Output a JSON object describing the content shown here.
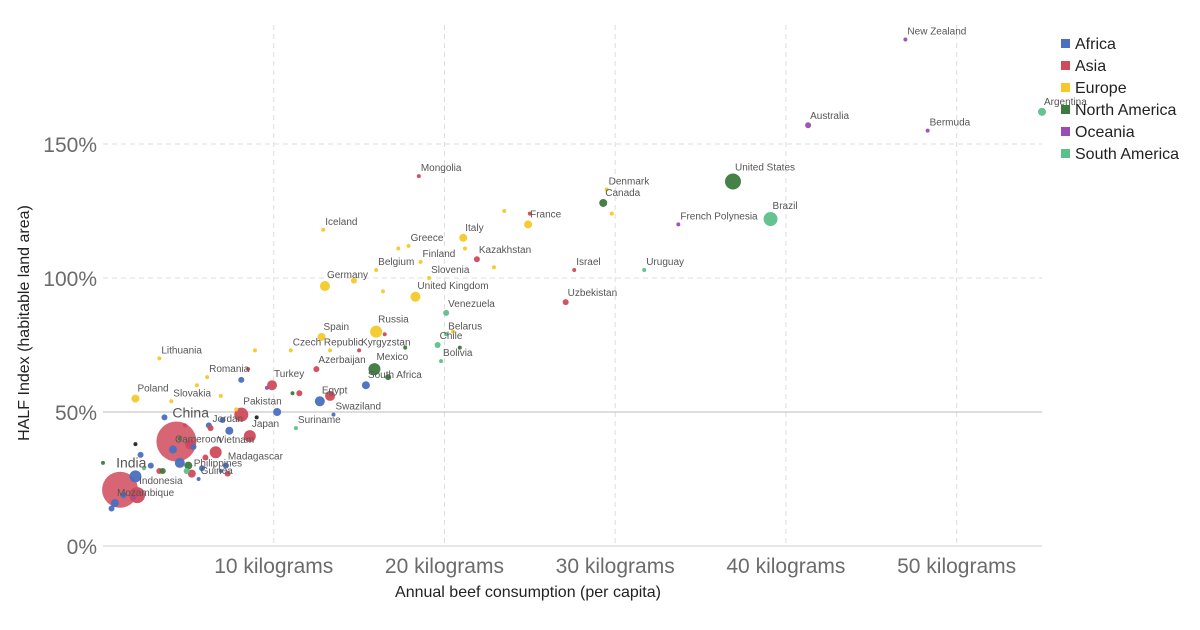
{
  "chart_data": {
    "type": "scatter",
    "title": "",
    "xlabel": "Annual beef consumption (per capita)",
    "ylabel": "HALF Index (habitable land area)",
    "xlim": [
      0,
      55
    ],
    "ylim": [
      0,
      190
    ],
    "x_ticks": [
      {
        "value": 10,
        "label": "10 kilograms"
      },
      {
        "value": 20,
        "label": "20 kilograms"
      },
      {
        "value": 30,
        "label": "30 kilograms"
      },
      {
        "value": 40,
        "label": "40 kilograms"
      },
      {
        "value": 50,
        "label": "50 kilograms"
      }
    ],
    "y_ticks": [
      {
        "value": 0,
        "label": "0%"
      },
      {
        "value": 50,
        "label": "50%"
      },
      {
        "value": 100,
        "label": "100%"
      },
      {
        "value": 150,
        "label": "150%"
      }
    ],
    "reference_line": 50,
    "grid": true,
    "legend_position": "top-right",
    "colors": {
      "Africa": "#4a6fc0",
      "Asia": "#d04a5a",
      "Europe": "#f5c92a",
      "North America": "#3d7a3d",
      "Oceania": "#9a4cb5",
      "South America": "#5cc08a"
    },
    "series": [
      {
        "name": "Africa",
        "points": [
          {
            "label": "Egypt",
            "x": 12.7,
            "y": 54,
            "size": 5
          },
          {
            "label": "South Africa",
            "x": 15.4,
            "y": 60,
            "size": 4
          },
          {
            "label": "Swaziland",
            "x": 13.5,
            "y": 49,
            "size": 2
          },
          {
            "label": "Cameroon",
            "x": 4.1,
            "y": 36,
            "size": 4
          },
          {
            "label": "Madagascar",
            "x": 7.2,
            "y": 30,
            "size": 3
          },
          {
            "label": "Guinea",
            "x": 5.6,
            "y": 25,
            "size": 2
          },
          {
            "label": "Mozambique",
            "x": 0.7,
            "y": 16,
            "size": 4
          },
          {
            "label": "",
            "x": 1.9,
            "y": 26,
            "size": 6
          },
          {
            "label": "",
            "x": 0.5,
            "y": 14,
            "size": 3
          },
          {
            "label": "",
            "x": 1.2,
            "y": 19,
            "size": 3
          },
          {
            "label": "",
            "x": 2.2,
            "y": 34,
            "size": 3
          },
          {
            "label": "",
            "x": 4.5,
            "y": 31,
            "size": 5
          },
          {
            "label": "",
            "x": 5.3,
            "y": 37,
            "size": 3
          },
          {
            "label": "",
            "x": 6.2,
            "y": 45,
            "size": 3
          },
          {
            "label": "",
            "x": 7.4,
            "y": 43,
            "size": 4
          },
          {
            "label": "",
            "x": 8.1,
            "y": 62,
            "size": 3
          },
          {
            "label": "",
            "x": 10.2,
            "y": 50,
            "size": 4
          },
          {
            "label": "",
            "x": 3.6,
            "y": 48,
            "size": 3
          },
          {
            "label": "",
            "x": 2.8,
            "y": 30,
            "size": 3
          },
          {
            "label": "",
            "x": 5.8,
            "y": 29,
            "size": 3
          },
          {
            "label": "",
            "x": 7.0,
            "y": 47,
            "size": 3
          },
          {
            "label": "",
            "x": 6.9,
            "y": 28,
            "size": 2
          }
        ]
      },
      {
        "name": "Asia",
        "points": [
          {
            "label": "Mongolia",
            "x": 18.5,
            "y": 138,
            "size": 2
          },
          {
            "label": "Kazakhstan",
            "x": 21.9,
            "y": 107,
            "size": 3
          },
          {
            "label": "Israel",
            "x": 27.6,
            "y": 103,
            "size": 2
          },
          {
            "label": "Uzbekistan",
            "x": 27.1,
            "y": 91,
            "size": 3
          },
          {
            "label": "Kyrgyzstan",
            "x": 15.0,
            "y": 73,
            "size": 2
          },
          {
            "label": "Azerbaijan",
            "x": 12.5,
            "y": 66,
            "size": 3
          },
          {
            "label": "Turkey",
            "x": 9.9,
            "y": 60,
            "size": 5
          },
          {
            "label": "Pakistan",
            "x": 8.1,
            "y": 49,
            "size": 7
          },
          {
            "label": "Jordan",
            "x": 6.3,
            "y": 44,
            "size": 3
          },
          {
            "label": "Japan",
            "x": 8.6,
            "y": 41,
            "size": 6
          },
          {
            "label": "Vietnam",
            "x": 6.6,
            "y": 35,
            "size": 6
          },
          {
            "label": "Philippines",
            "x": 5.2,
            "y": 27,
            "size": 4
          },
          {
            "label": "China",
            "x": 4.3,
            "y": 39,
            "size": 20
          },
          {
            "label": "India",
            "x": 1.0,
            "y": 21,
            "size": 18
          },
          {
            "label": "Indonesia",
            "x": 2.0,
            "y": 19,
            "size": 8
          },
          {
            "label": "",
            "x": 11.5,
            "y": 57,
            "size": 3
          },
          {
            "label": "",
            "x": 13.3,
            "y": 56,
            "size": 5
          },
          {
            "label": "",
            "x": 16.5,
            "y": 79,
            "size": 2
          },
          {
            "label": "",
            "x": 25.0,
            "y": 124,
            "size": 2
          },
          {
            "label": "",
            "x": 8.5,
            "y": 66,
            "size": 2
          },
          {
            "label": "",
            "x": 3.3,
            "y": 28,
            "size": 3
          },
          {
            "label": "",
            "x": 5.1,
            "y": 38,
            "size": 5
          },
          {
            "label": "",
            "x": 6.0,
            "y": 33,
            "size": 3
          },
          {
            "label": "",
            "x": 4.8,
            "y": 45,
            "size": 2
          },
          {
            "label": "",
            "x": 7.3,
            "y": 27,
            "size": 3
          }
        ]
      },
      {
        "name": "Europe",
        "points": [
          {
            "label": "Denmark",
            "x": 29.5,
            "y": 133,
            "size": 2
          },
          {
            "label": "France",
            "x": 24.9,
            "y": 120,
            "size": 4
          },
          {
            "label": "Italy",
            "x": 21.1,
            "y": 115,
            "size": 4
          },
          {
            "label": "Iceland",
            "x": 12.9,
            "y": 118,
            "size": 2
          },
          {
            "label": "Greece",
            "x": 17.9,
            "y": 112,
            "size": 2
          },
          {
            "label": "Finland",
            "x": 18.6,
            "y": 106,
            "size": 2
          },
          {
            "label": "Belgium",
            "x": 16.0,
            "y": 103,
            "size": 2
          },
          {
            "label": "Germany",
            "x": 13.0,
            "y": 97,
            "size": 5
          },
          {
            "label": "Slovenia",
            "x": 19.1,
            "y": 100,
            "size": 2
          },
          {
            "label": "United Kingdom",
            "x": 18.3,
            "y": 93,
            "size": 5
          },
          {
            "label": "Russia",
            "x": 16.0,
            "y": 80,
            "size": 6
          },
          {
            "label": "Spain",
            "x": 12.8,
            "y": 78,
            "size": 4
          },
          {
            "label": "Czech Republic",
            "x": 11.0,
            "y": 73,
            "size": 2
          },
          {
            "label": "Lithuania",
            "x": 3.3,
            "y": 70,
            "size": 2
          },
          {
            "label": "Romania",
            "x": 6.1,
            "y": 63,
            "size": 2
          },
          {
            "label": "Poland",
            "x": 1.9,
            "y": 55,
            "size": 4
          },
          {
            "label": "Slovakia",
            "x": 4.0,
            "y": 54,
            "size": 2
          },
          {
            "label": "",
            "x": 14.7,
            "y": 99,
            "size": 3
          },
          {
            "label": "",
            "x": 16.4,
            "y": 95,
            "size": 2
          },
          {
            "label": "",
            "x": 17.3,
            "y": 111,
            "size": 2
          },
          {
            "label": "",
            "x": 23.5,
            "y": 125,
            "size": 2
          },
          {
            "label": "",
            "x": 29.8,
            "y": 124,
            "size": 2
          },
          {
            "label": "",
            "x": 21.2,
            "y": 111,
            "size": 2
          },
          {
            "label": "",
            "x": 22.9,
            "y": 104,
            "size": 2
          },
          {
            "label": "",
            "x": 13.3,
            "y": 73,
            "size": 2
          },
          {
            "label": "",
            "x": 8.9,
            "y": 73,
            "size": 2
          },
          {
            "label": "",
            "x": 6.9,
            "y": 56,
            "size": 2
          },
          {
            "label": "",
            "x": 5.5,
            "y": 60,
            "size": 2
          },
          {
            "label": "",
            "x": 7.8,
            "y": 51,
            "size": 2
          },
          {
            "label": "",
            "x": 20.5,
            "y": 80,
            "size": 2
          }
        ]
      },
      {
        "name": "North America",
        "points": [
          {
            "label": "United States",
            "x": 36.9,
            "y": 136,
            "size": 8
          },
          {
            "label": "Canada",
            "x": 29.3,
            "y": 128,
            "size": 4
          },
          {
            "label": "Mexico",
            "x": 15.9,
            "y": 66,
            "size": 6
          },
          {
            "label": "",
            "x": 16.7,
            "y": 63,
            "size": 3
          },
          {
            "label": "",
            "x": 17.7,
            "y": 74,
            "size": 2
          },
          {
            "label": "",
            "x": 20.9,
            "y": 74,
            "size": 2
          },
          {
            "label": "",
            "x": 11.1,
            "y": 57,
            "size": 2
          },
          {
            "label": "",
            "x": 0.0,
            "y": 31,
            "size": 2
          },
          {
            "label": "",
            "x": 5.0,
            "y": 30,
            "size": 4
          },
          {
            "label": "",
            "x": 3.5,
            "y": 28,
            "size": 3
          },
          {
            "label": "",
            "x": 4.5,
            "y": 40,
            "size": 2
          }
        ]
      },
      {
        "name": "Oceania",
        "points": [
          {
            "label": "New Zealand",
            "x": 47.0,
            "y": 189,
            "size": 2
          },
          {
            "label": "Australia",
            "x": 41.3,
            "y": 157,
            "size": 3
          },
          {
            "label": "Bermuda",
            "x": 48.3,
            "y": 155,
            "size": 2
          },
          {
            "label": "French Polynesia",
            "x": 33.7,
            "y": 120,
            "size": 2
          },
          {
            "label": "",
            "x": 9.6,
            "y": 59,
            "size": 2
          },
          {
            "label": "",
            "x": 1.8,
            "y": 18,
            "size": 2
          }
        ]
      },
      {
        "name": "South America",
        "points": [
          {
            "label": "Argentina",
            "x": 55.0,
            "y": 162,
            "size": 4
          },
          {
            "label": "Brazil",
            "x": 39.1,
            "y": 122,
            "size": 7
          },
          {
            "label": "Uruguay",
            "x": 31.7,
            "y": 103,
            "size": 2
          },
          {
            "label": "Venezuela",
            "x": 20.1,
            "y": 87,
            "size": 3
          },
          {
            "label": "Chile",
            "x": 19.6,
            "y": 75,
            "size": 3
          },
          {
            "label": "Bolivia",
            "x": 19.8,
            "y": 69,
            "size": 2
          },
          {
            "label": "Belarus",
            "x": 20.1,
            "y": 79,
            "size": 2
          },
          {
            "label": "Suriname",
            "x": 11.3,
            "y": 44,
            "size": 2
          },
          {
            "label": "",
            "x": 2.4,
            "y": 29,
            "size": 2
          },
          {
            "label": "",
            "x": 4.9,
            "y": 28,
            "size": 3
          }
        ]
      }
    ],
    "other_points": [
      {
        "x": 1.9,
        "y": 38,
        "size": 2,
        "color": "#222222"
      },
      {
        "x": 9.0,
        "y": 48,
        "size": 2,
        "color": "#222222"
      }
    ]
  }
}
